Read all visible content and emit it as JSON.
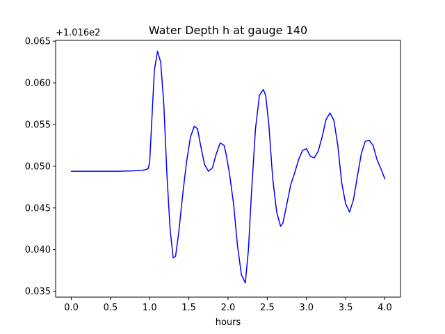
{
  "chart_data": {
    "type": "line",
    "title": "Water Depth h at gauge 140",
    "xlabel": "hours",
    "ylabel": "",
    "y_offset_label": "+1.016e2",
    "xlim": [
      -0.2,
      4.2
    ],
    "ylim": [
      0.0343,
      0.0651
    ],
    "x_ticks": [
      0.0,
      0.5,
      1.0,
      1.5,
      2.0,
      2.5,
      3.0,
      3.5,
      4.0
    ],
    "x_tick_labels": [
      "0.0",
      "0.5",
      "1.0",
      "1.5",
      "2.0",
      "2.5",
      "3.0",
      "3.5",
      "4.0"
    ],
    "y_ticks": [
      0.035,
      0.04,
      0.045,
      0.05,
      0.055,
      0.06,
      0.065
    ],
    "y_tick_labels": [
      "0.035",
      "0.040",
      "0.045",
      "0.050",
      "0.055",
      "0.060",
      "0.065"
    ],
    "grid": false,
    "series": [
      {
        "color": "#0000ff",
        "x": [
          0.0,
          0.2,
          0.4,
          0.6,
          0.8,
          0.9,
          0.95,
          0.98,
          1.0,
          1.03,
          1.06,
          1.1,
          1.14,
          1.18,
          1.22,
          1.26,
          1.3,
          1.33,
          1.37,
          1.42,
          1.47,
          1.52,
          1.57,
          1.61,
          1.65,
          1.7,
          1.75,
          1.8,
          1.85,
          1.9,
          1.95,
          1.98,
          2.02,
          2.07,
          2.12,
          2.17,
          2.22,
          2.26,
          2.3,
          2.35,
          2.4,
          2.45,
          2.48,
          2.52,
          2.57,
          2.62,
          2.67,
          2.7,
          2.74,
          2.8,
          2.85,
          2.9,
          2.95,
          3.0,
          3.05,
          3.1,
          3.15,
          3.2,
          3.25,
          3.3,
          3.35,
          3.4,
          3.45,
          3.5,
          3.55,
          3.6,
          3.65,
          3.7,
          3.75,
          3.8,
          3.85,
          3.9,
          3.95,
          4.0
        ],
        "y": [
          0.0494,
          0.0494,
          0.0494,
          0.0494,
          0.04945,
          0.0495,
          0.0496,
          0.0497,
          0.0505,
          0.056,
          0.0615,
          0.0638,
          0.0625,
          0.0575,
          0.049,
          0.0425,
          0.039,
          0.0392,
          0.042,
          0.0465,
          0.0505,
          0.0535,
          0.0548,
          0.0545,
          0.0525,
          0.0502,
          0.0494,
          0.0498,
          0.0515,
          0.0528,
          0.0525,
          0.0512,
          0.049,
          0.0455,
          0.0405,
          0.037,
          0.036,
          0.04,
          0.047,
          0.0545,
          0.0585,
          0.0592,
          0.0585,
          0.055,
          0.0485,
          0.0445,
          0.0428,
          0.0432,
          0.045,
          0.0478,
          0.0492,
          0.0508,
          0.0519,
          0.0521,
          0.0512,
          0.051,
          0.0518,
          0.0535,
          0.0556,
          0.0564,
          0.0555,
          0.0525,
          0.048,
          0.0455,
          0.0445,
          0.046,
          0.0488,
          0.0515,
          0.053,
          0.0531,
          0.0525,
          0.0508,
          0.0497,
          0.0485
        ]
      }
    ]
  }
}
